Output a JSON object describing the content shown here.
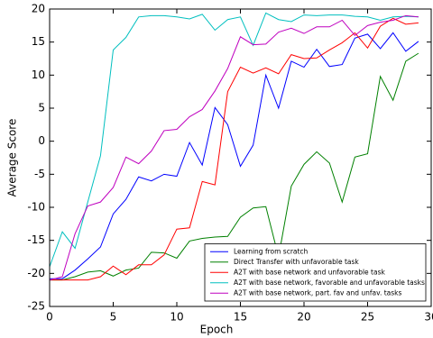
{
  "chart_data": {
    "type": "line",
    "x_label": "Epoch",
    "y_label": "Average Score",
    "x": [
      0,
      1,
      2,
      3,
      4,
      5,
      6,
      7,
      8,
      9,
      10,
      11,
      12,
      13,
      14,
      15,
      16,
      17,
      18,
      19,
      20,
      21,
      22,
      23,
      24,
      25,
      26,
      27,
      28,
      29
    ],
    "series": [
      {
        "name": "Learning from scratch",
        "color": "#0000ff",
        "values": [
          -20.8,
          -20.8,
          -19.5,
          -17.8,
          -16,
          -11,
          -8.8,
          -5.4,
          -6,
          -5,
          -5.3,
          -0.2,
          -3.6,
          5.1,
          2.5,
          -3.8,
          -0.6,
          10,
          5,
          12.1,
          11.2,
          13.9,
          11.3,
          11.6,
          15.6,
          16.2,
          14,
          16.4,
          13.6,
          15.1
        ]
      },
      {
        "name": "Direct Transfer with unfavorable task",
        "color": "#008000",
        "values": [
          -21,
          -21,
          -20.5,
          -19.8,
          -19.6,
          -20.4,
          -19.5,
          -19.2,
          -16.8,
          -16.9,
          -17.7,
          -15.1,
          -14.7,
          -14.5,
          -14.4,
          -11.5,
          -10.1,
          -9.9,
          -17.5,
          -6.8,
          -3.5,
          -1.6,
          -3.3,
          -9.2,
          -2.4,
          -1.9,
          9.8,
          6.2,
          12.1,
          13.3
        ]
      },
      {
        "name": "A2T with base network and unfavorable task",
        "color": "#ff0000",
        "values": [
          -21,
          -21,
          -21,
          -21,
          -20.5,
          -18.9,
          -20.2,
          -18.7,
          -18.7,
          -17.2,
          -13.3,
          -13.1,
          -6.1,
          -6.6,
          7.5,
          11.2,
          10.3,
          11.1,
          10.2,
          13.1,
          12.5,
          12.6,
          13.8,
          14.9,
          16.4,
          14.1,
          17.4,
          18.6,
          17.7,
          17.9
        ]
      },
      {
        "name": "A2T with base network, favorable and unfavorable tasks",
        "color": "#00bfbf",
        "values": [
          -19,
          -13.7,
          -16.2,
          -9.2,
          -2.2,
          13.8,
          15.7,
          18.8,
          19,
          19,
          18.8,
          18.5,
          19.2,
          16.8,
          18.4,
          18.8,
          14.5,
          19.4,
          18.4,
          18.1,
          19.1,
          19,
          19.1,
          19.1,
          18.9,
          18.8,
          18.3,
          18.8,
          18.9,
          18.8
        ]
      },
      {
        "name": "A2T with base network, part. fav and unfav. tasks",
        "color": "#bf00bf",
        "values": [
          -21,
          -20.5,
          -14,
          -9.8,
          -9.2,
          -7,
          -2.4,
          -3.4,
          -1.5,
          1.6,
          1.8,
          3.7,
          4.8,
          7.6,
          11,
          15.8,
          14.6,
          14.7,
          16.5,
          17.1,
          16.3,
          17.3,
          17.3,
          18.3,
          16,
          17.5,
          18,
          18.3,
          19,
          18.8
        ]
      }
    ],
    "xlim": [
      0,
      30
    ],
    "xticks": [
      0,
      5,
      10,
      15,
      20,
      25,
      30
    ],
    "ylim": [
      -25,
      20
    ],
    "yticks": [
      -25,
      -20,
      -15,
      -10,
      -5,
      0,
      5,
      10,
      15,
      20
    ],
    "legend": "lower right"
  }
}
